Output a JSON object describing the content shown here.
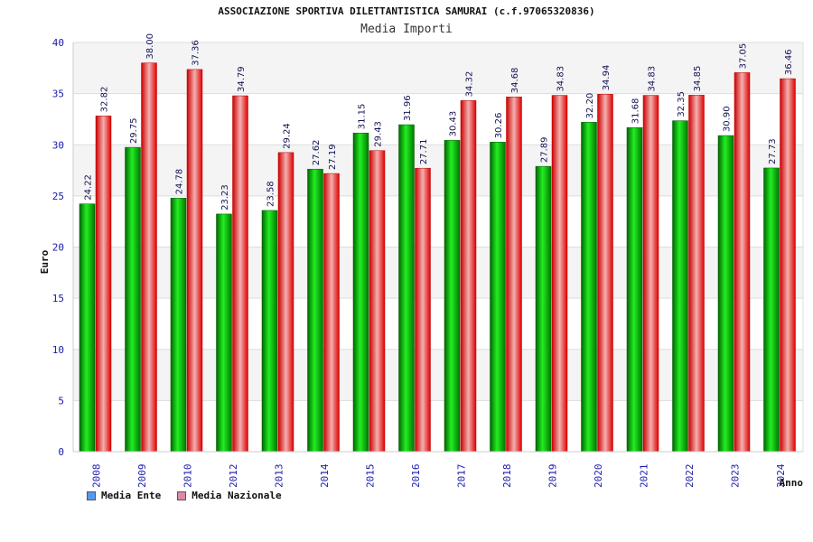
{
  "chart_data": {
    "type": "bar",
    "title": "ASSOCIAZIONE SPORTIVA DILETTANTISTICA SAMURAI (c.f.97065320836)",
    "subtitle": "Media Importi",
    "xlabel": "Anno",
    "ylabel": "Euro",
    "ylim": [
      0,
      40
    ],
    "yticks": [
      0,
      5,
      10,
      15,
      20,
      25,
      30,
      35,
      40
    ],
    "grid": true,
    "legend_position": "bottom-left",
    "categories": [
      "2008",
      "2009",
      "2010",
      "2012",
      "2013",
      "2014",
      "2015",
      "2016",
      "2017",
      "2018",
      "2019",
      "2020",
      "2021",
      "2022",
      "2023",
      "2024"
    ],
    "series": [
      {
        "name": "Media Ente",
        "color": "#00aa00",
        "legend_color": "#5599ee",
        "values": [
          24.22,
          29.75,
          24.78,
          23.23,
          23.58,
          27.62,
          31.15,
          31.96,
          30.43,
          30.26,
          27.89,
          32.2,
          31.68,
          32.35,
          30.9,
          27.73
        ],
        "labels": [
          "24.22",
          "29.75",
          "24.78",
          "23.23",
          "23.58",
          "27.62",
          "31.15",
          "31.96",
          "30.43",
          "30.26",
          "27.89",
          "32.20",
          "31.68",
          "32.35",
          "30.90",
          "27.73"
        ]
      },
      {
        "name": "Media Nazionale",
        "color": "#ee1111",
        "legend_color": "#dd88aa",
        "values": [
          32.82,
          38.0,
          37.36,
          34.79,
          29.24,
          27.19,
          29.43,
          27.71,
          34.32,
          34.68,
          34.83,
          34.94,
          34.83,
          34.85,
          37.05,
          36.46
        ],
        "labels": [
          "32.82",
          "38.00",
          "37.36",
          "34.79",
          "29.24",
          "27.19",
          "29.43",
          "27.71",
          "34.32",
          "34.68",
          "34.83",
          "34.94",
          "34.83",
          "34.85",
          "37.05",
          "36.46"
        ]
      }
    ]
  }
}
